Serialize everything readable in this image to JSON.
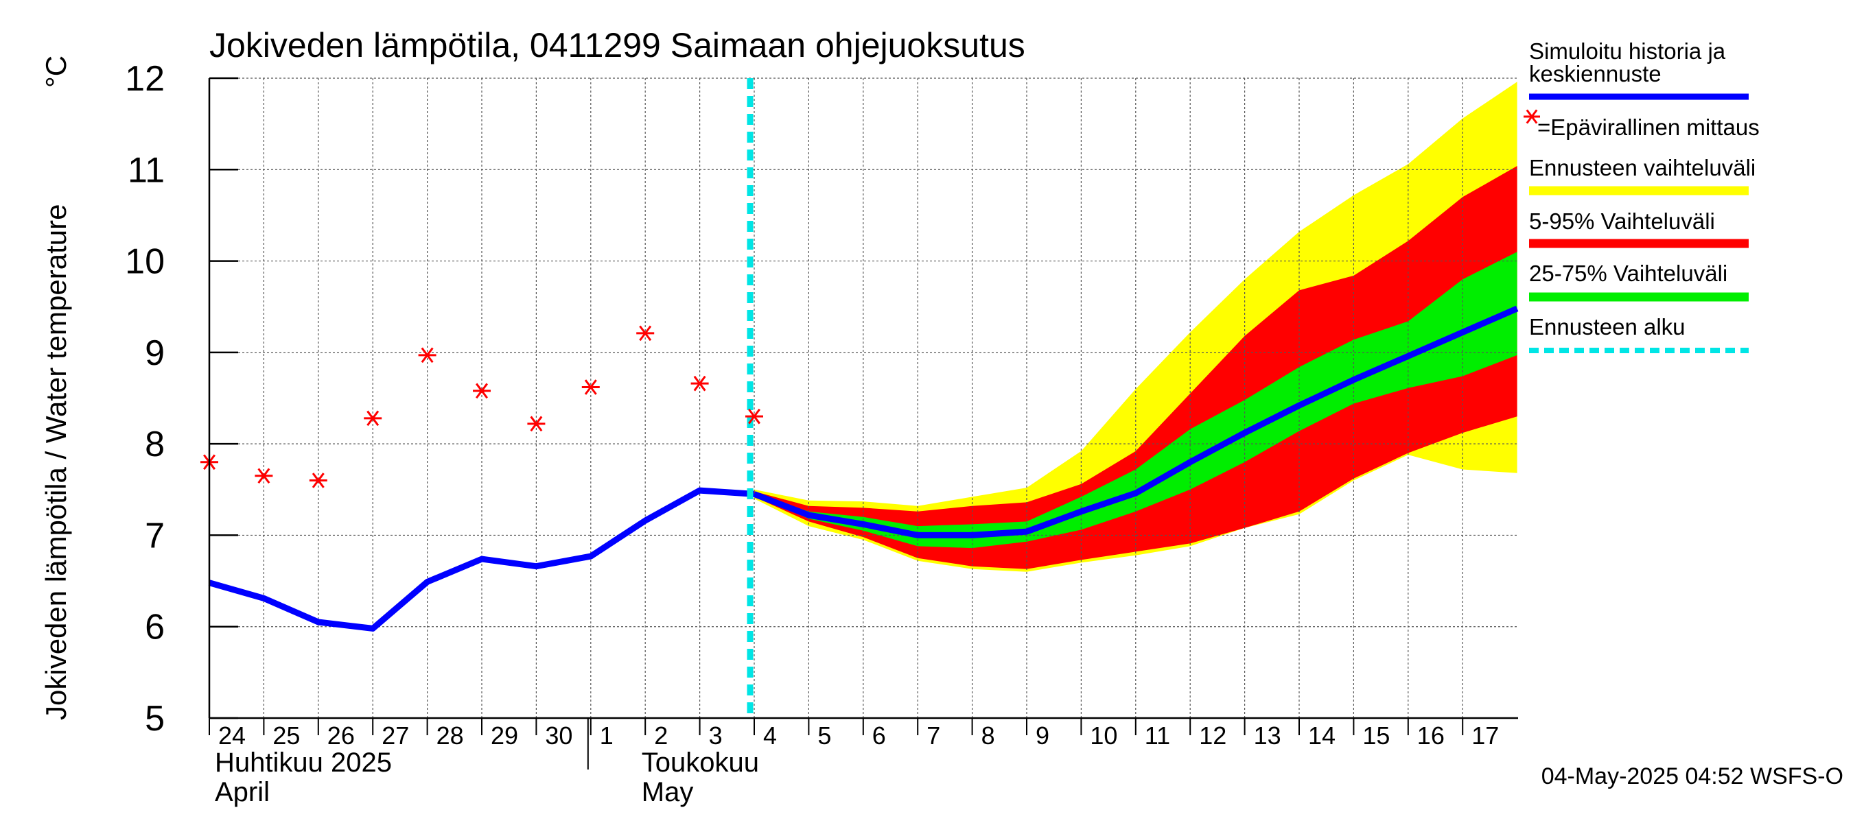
{
  "chart_data": {
    "type": "line",
    "title": "Jokiveden lämpötila, 0411299 Saimaan ohjejuoksutus",
    "ylabel": "Jokiveden lämpötila / Water temperature",
    "yunit": "°C",
    "ylim": [
      5,
      12
    ],
    "yticks": [
      5,
      6,
      7,
      8,
      9,
      10,
      11,
      12
    ],
    "grid": true,
    "x_day_labels": [
      "24",
      "25",
      "26",
      "27",
      "28",
      "29",
      "30",
      "1",
      "2",
      "3",
      "4",
      "5",
      "6",
      "7",
      "8",
      "9",
      "10",
      "11",
      "12",
      "13",
      "14",
      "15",
      "16",
      "17"
    ],
    "month_labels": [
      {
        "fi": "Huhtikuu  2025",
        "en": "April"
      },
      {
        "fi": "Toukokuu",
        "en": "May"
      }
    ],
    "forecast_start_day_index": 10,
    "history": {
      "name": "Simuloitu historia ja keskiennuste",
      "color": "#0000ff",
      "days": [
        0,
        1,
        2,
        3,
        4,
        5,
        6,
        7,
        8,
        9,
        10
      ],
      "values": [
        6.48,
        6.31,
        6.05,
        5.98,
        6.49,
        6.74,
        6.66,
        6.77,
        7.16,
        7.49,
        7.45
      ]
    },
    "forecast_days": [
      10,
      11,
      12,
      13,
      14,
      15,
      16,
      17,
      18,
      19,
      20,
      21,
      22,
      23,
      24
    ],
    "forecast_mean": [
      7.45,
      7.22,
      7.12,
      7.0,
      7.0,
      7.04,
      7.26,
      7.46,
      7.8,
      8.12,
      8.42,
      8.7,
      8.96,
      9.22,
      9.48
    ],
    "band_range_upper": [
      7.5,
      7.38,
      7.37,
      7.32,
      7.42,
      7.52,
      7.92,
      8.6,
      9.22,
      9.8,
      10.32,
      10.72,
      11.06,
      11.56,
      11.96
    ],
    "band_range_lower": [
      7.4,
      7.1,
      6.95,
      6.72,
      6.63,
      6.6,
      6.7,
      6.78,
      6.88,
      7.08,
      7.23,
      7.6,
      7.88,
      7.72,
      7.68
    ],
    "band_5_95_upper": [
      7.48,
      7.32,
      7.3,
      7.26,
      7.32,
      7.36,
      7.56,
      7.92,
      8.55,
      9.18,
      9.68,
      9.84,
      10.22,
      10.7,
      11.04
    ],
    "band_5_95_lower": [
      7.42,
      7.15,
      6.98,
      6.75,
      6.66,
      6.63,
      6.73,
      6.82,
      6.91,
      7.08,
      7.26,
      7.62,
      7.9,
      8.12,
      8.3
    ],
    "band_25_75_upper": [
      7.46,
      7.26,
      7.2,
      7.1,
      7.12,
      7.15,
      7.42,
      7.72,
      8.16,
      8.48,
      8.84,
      9.14,
      9.34,
      9.8,
      10.1
    ],
    "band_25_75_lower": [
      7.44,
      7.18,
      7.05,
      6.88,
      6.86,
      6.93,
      7.06,
      7.26,
      7.5,
      7.8,
      8.14,
      8.44,
      8.61,
      8.74,
      8.97
    ],
    "measurements": {
      "name": "=Epävirallinen mittaus",
      "color": "#ff0000",
      "days": [
        0,
        1,
        2,
        3,
        4,
        5,
        6,
        7,
        8,
        9,
        10
      ],
      "values": [
        7.8,
        7.65,
        7.6,
        8.28,
        8.97,
        8.58,
        8.22,
        8.62,
        9.21,
        8.66,
        8.3
      ]
    },
    "legend": [
      {
        "label": "Simuloitu historia ja",
        "label2": "keskiennuste",
        "color": "#0000ff",
        "kind": "line"
      },
      {
        "label": "=Epävirallinen mittaus",
        "color": "#ff0000",
        "kind": "star"
      },
      {
        "label": "Ennusteen vaihteluväli",
        "color": "#ffff00",
        "kind": "bar"
      },
      {
        "label": "5-95% Vaihteluväli",
        "color": "#ff0000",
        "kind": "bar"
      },
      {
        "label": "25-75% Vaihteluväli",
        "color": "#00ee00",
        "kind": "bar"
      },
      {
        "label": "Ennusteen alku",
        "color": "#00e5e5",
        "kind": "dash"
      }
    ],
    "footer": "04-May-2025 04:52 WSFS-O"
  }
}
